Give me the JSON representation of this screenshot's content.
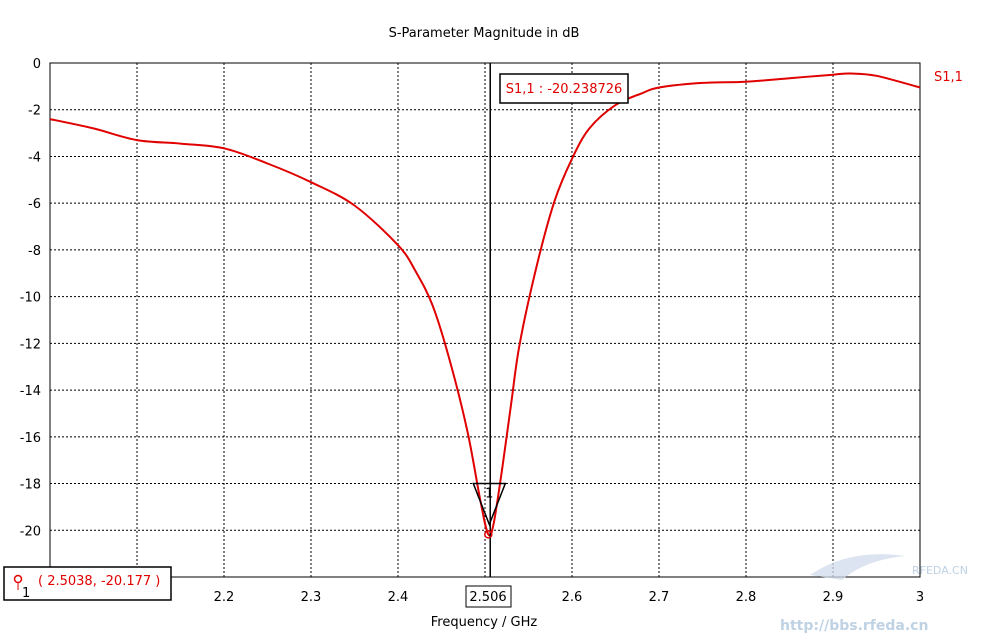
{
  "chart_data": {
    "type": "line",
    "title": "S-Parameter Magnitude in dB",
    "xlabel": "Frequency / GHz",
    "ylabel": "",
    "xlim": [
      2.0,
      3.0
    ],
    "ylim": [
      -22,
      0
    ],
    "grid": true,
    "x_ticks": [
      2.2,
      2.3,
      2.4,
      2.6,
      2.7,
      2.8,
      2.9,
      3
    ],
    "x_tick_labels": [
      "2.2",
      "2.3",
      "2.4",
      "2.6",
      "2.7",
      "2.8",
      "2.9",
      "3"
    ],
    "y_ticks": [
      0,
      -2,
      -4,
      -6,
      -8,
      -10,
      -12,
      -14,
      -16,
      -18,
      -20
    ],
    "y_tick_labels": [
      "0",
      "-2",
      "-4",
      "-6",
      "-8",
      "-10",
      "-12",
      "-14",
      "-16",
      "-18",
      "-20"
    ],
    "series": [
      {
        "name": "S1,1",
        "color": "#e00000",
        "x": [
          2.0,
          2.05,
          2.1,
          2.15,
          2.2,
          2.25,
          2.3,
          2.35,
          2.4,
          2.42,
          2.44,
          2.46,
          2.48,
          2.495,
          2.5038,
          2.51,
          2.52,
          2.53,
          2.54,
          2.56,
          2.58,
          2.6,
          2.62,
          2.65,
          2.68,
          2.7,
          2.75,
          2.8,
          2.85,
          2.9,
          2.92,
          2.95,
          3.0
        ],
        "y": [
          -2.4,
          -2.8,
          -3.3,
          -3.45,
          -3.65,
          -4.3,
          -5.1,
          -6.1,
          -7.8,
          -8.9,
          -10.4,
          -12.8,
          -15.8,
          -18.8,
          -20.177,
          -19.7,
          -17.3,
          -14.6,
          -12.0,
          -8.6,
          -5.9,
          -4.1,
          -2.8,
          -1.8,
          -1.3,
          -1.05,
          -0.85,
          -0.8,
          -0.65,
          -0.5,
          -0.45,
          -0.55,
          -1.05
        ]
      }
    ],
    "marker_x": 2.506,
    "marker_x_label": "2.506",
    "marker_label": "S1,1 : -20.238726",
    "min_point": {
      "x": 2.5038,
      "y": -20.177,
      "label": "( 2.5038, -20.177 )",
      "index_label": "1"
    },
    "watermark": {
      "site": "RFEDA.CN",
      "url": "http://bbs.rfeda.cn"
    }
  }
}
